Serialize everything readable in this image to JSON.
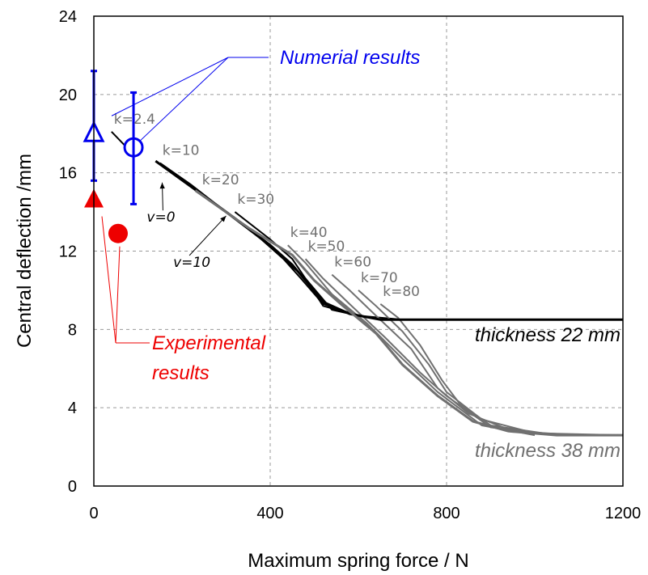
{
  "chart_data": {
    "type": "line",
    "xlabel": "Maximum spring force / N",
    "ylabel": "Central deflection /mm",
    "xlim": [
      0,
      1200
    ],
    "ylim": [
      0,
      24
    ],
    "xticks": [
      0,
      400,
      800,
      1200
    ],
    "yticks": [
      0,
      4,
      8,
      12,
      16,
      20,
      24
    ],
    "grid": true,
    "colors": {
      "curve22": "#000000",
      "curve38": "#707070",
      "klabel": "#707070",
      "numerical": "#0000ee",
      "experimental": "#ee0000"
    },
    "series": [
      {
        "name": "thickness 22 mm",
        "x": [
          140,
          300,
          400,
          450,
          480,
          520,
          580,
          650,
          800,
          1000,
          1200
        ],
        "y": [
          16.6,
          14.0,
          12.3,
          11.3,
          10.5,
          9.4,
          8.8,
          8.5,
          8.5,
          8.5,
          8.5
        ]
      },
      {
        "name": "thickness 38 mm",
        "x": [
          230,
          350,
          450,
          500,
          560,
          640,
          700,
          780,
          860,
          940,
          1050,
          1200
        ],
        "y": [
          15.1,
          13.2,
          11.8,
          10.5,
          9.3,
          7.8,
          6.2,
          4.6,
          3.3,
          2.8,
          2.6,
          2.6
        ]
      }
    ],
    "k_curves": [
      {
        "label": "k=2.4",
        "x": [
          40,
          70
        ],
        "y": [
          18.1,
          17.4
        ]
      },
      {
        "label": "k=10",
        "x": [
          150,
          220,
          300,
          380,
          430,
          470,
          520,
          600,
          700,
          800,
          1200
        ],
        "y": [
          16.5,
          15.4,
          14.0,
          12.6,
          11.6,
          10.6,
          9.3,
          8.7,
          8.5,
          8.5,
          8.5
        ]
      },
      {
        "label": "k=20",
        "x": [
          240,
          320,
          400,
          440,
          480,
          520,
          600
        ],
        "y": [
          15.0,
          13.7,
          12.3,
          11.4,
          10.6,
          9.2,
          8.7
        ]
      },
      {
        "label": "k=30",
        "x": [
          320,
          400,
          450,
          480,
          540,
          620
        ],
        "y": [
          14.0,
          12.6,
          11.6,
          10.6,
          9.0,
          8.6
        ]
      },
      {
        "label": "k=40",
        "x": [
          440,
          480,
          540,
          620,
          700,
          780,
          880,
          1000
        ],
        "y": [
          12.3,
          11.4,
          9.8,
          8.3,
          6.5,
          4.8,
          3.1,
          2.6
        ]
      },
      {
        "label": "k=50",
        "x": [
          480,
          520,
          580,
          660,
          740,
          800,
          900,
          1050
        ],
        "y": [
          11.6,
          10.6,
          9.3,
          7.6,
          5.8,
          4.6,
          3.0,
          2.6
        ]
      },
      {
        "label": "k=60",
        "x": [
          540,
          580,
          640,
          720,
          780,
          850,
          950,
          1100
        ],
        "y": [
          10.8,
          10.0,
          8.7,
          7.0,
          5.0,
          3.7,
          2.8,
          2.6
        ]
      },
      {
        "label": "k=70",
        "x": [
          600,
          640,
          700,
          760,
          800,
          880,
          1000,
          1200
        ],
        "y": [
          10.0,
          9.2,
          7.9,
          6.2,
          4.8,
          3.4,
          2.7,
          2.6
        ]
      },
      {
        "label": "k=80",
        "x": [
          650,
          690,
          740,
          790,
          830,
          900,
          1050,
          1200
        ],
        "y": [
          9.3,
          8.6,
          7.2,
          5.4,
          4.2,
          3.1,
          2.6,
          2.6
        ]
      }
    ],
    "v_labels": [
      {
        "label": "v=0",
        "x": 155,
        "y": 15.5,
        "text_x": 120,
        "text_y": 13.5
      },
      {
        "label": "v=10",
        "x": 300,
        "y": 13.8,
        "text_x": 180,
        "text_y": 11.2
      }
    ],
    "numerical_results": [
      {
        "marker": "triangle-open",
        "x": 0,
        "y": 18.0,
        "err_low": 15.6,
        "err_high": 21.2
      },
      {
        "marker": "circle-open",
        "x": 90,
        "y": 17.3,
        "err_low": 14.4,
        "err_high": 20.1
      }
    ],
    "experimental_results": [
      {
        "marker": "triangle-filled",
        "x": 0,
        "y": 14.6
      },
      {
        "marker": "circle-filled",
        "x": 55,
        "y": 12.9
      }
    ],
    "annotations": {
      "numerical": "Numerial results",
      "experimental_line1": "Experimental",
      "experimental_line2": "results",
      "thickness22": "thickness 22 mm",
      "thickness38": "thickness 38 mm"
    }
  }
}
